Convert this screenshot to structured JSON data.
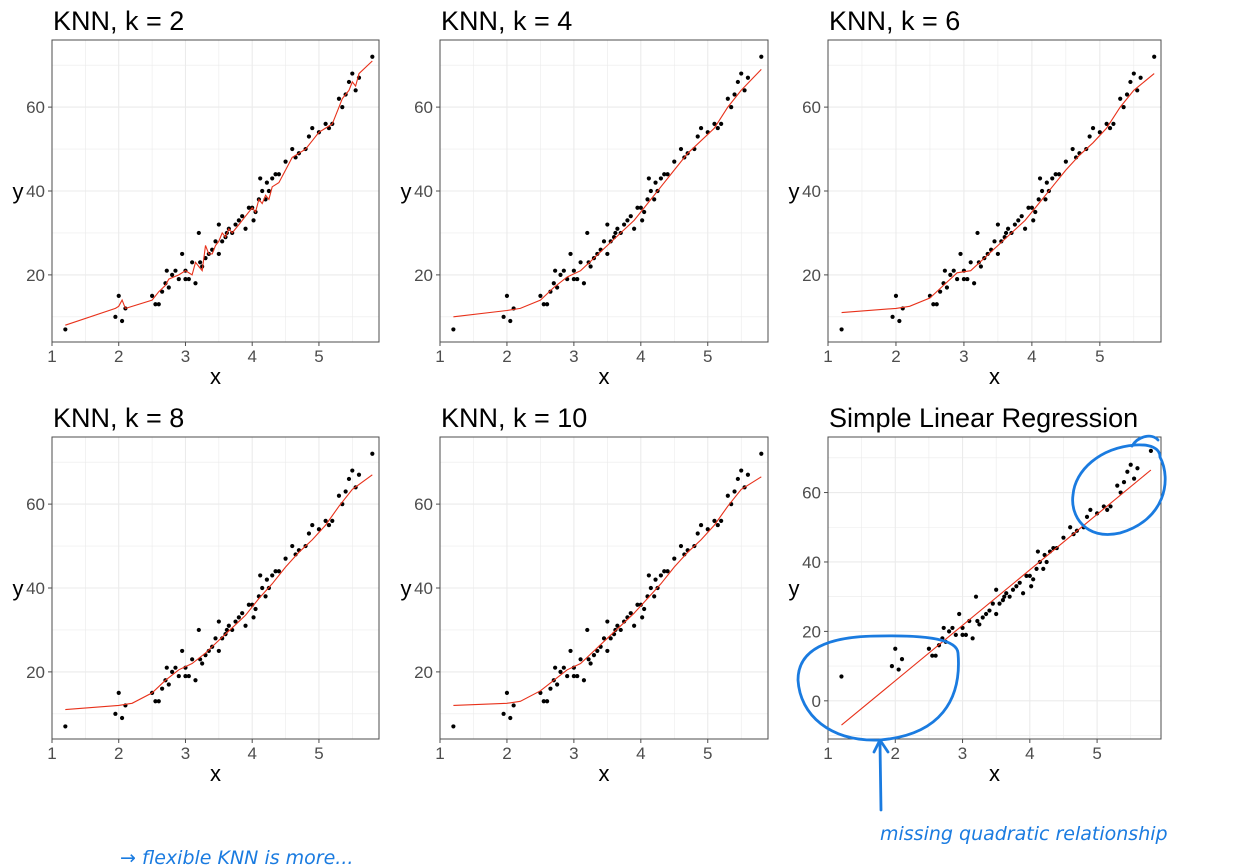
{
  "chart_data": [
    {
      "type": "scatter",
      "title": "KNN, k =  2",
      "xlabel": "x",
      "ylabel": "y",
      "xlim": [
        1,
        5.9
      ],
      "ylim": [
        4,
        76
      ],
      "grid": true,
      "x_ticks": [
        "1",
        "2",
        "3",
        "4",
        "5"
      ],
      "y_ticks": [
        "20",
        "40",
        "60"
      ],
      "fit": {
        "name": "",
        "x": [
          1.2,
          1.95,
          2.0,
          2.05,
          2.1,
          2.5,
          2.6,
          2.7,
          2.75,
          2.9,
          3.0,
          3.1,
          3.15,
          3.2,
          3.25,
          3.3,
          3.35,
          3.4,
          3.45,
          3.5,
          3.55,
          3.6,
          3.65,
          3.7,
          3.8,
          3.9,
          4.0,
          4.05,
          4.1,
          4.15,
          4.2,
          4.25,
          4.3,
          4.4,
          4.5,
          4.6,
          4.7,
          4.8,
          4.9,
          5.0,
          5.1,
          5.2,
          5.3,
          5.35,
          5.4,
          5.45,
          5.5,
          5.55,
          5.6,
          5.8
        ],
        "y": [
          8,
          12,
          12.5,
          14,
          12,
          14,
          16,
          17.5,
          19,
          20,
          21,
          20,
          23,
          22,
          21,
          27,
          25,
          25,
          27,
          28,
          30,
          29,
          31,
          30,
          32,
          34,
          36,
          35,
          38,
          37,
          39,
          38,
          41,
          42,
          45,
          48,
          49,
          50,
          52,
          54,
          55,
          56,
          60,
          62,
          63,
          64,
          66,
          65,
          68,
          71
        ]
      }
    },
    {
      "type": "scatter",
      "title": "KNN, k =  4",
      "xlabel": "x",
      "ylabel": "y",
      "xlim": [
        1,
        5.9
      ],
      "ylim": [
        4,
        76
      ],
      "grid": true,
      "x_ticks": [
        "1",
        "2",
        "3",
        "4",
        "5"
      ],
      "y_ticks": [
        "20",
        "40",
        "60"
      ],
      "fit": {
        "name": "",
        "x": [
          1.2,
          2.0,
          2.2,
          2.5,
          2.7,
          2.9,
          3.1,
          3.3,
          3.5,
          3.7,
          3.9,
          4.1,
          4.3,
          4.5,
          4.7,
          4.9,
          5.1,
          5.3,
          5.5,
          5.8
        ],
        "y": [
          10,
          11.5,
          12,
          14,
          17,
          19.5,
          21,
          24,
          27,
          30,
          33,
          37,
          41,
          45,
          49,
          52,
          55,
          60,
          64,
          69
        ]
      }
    },
    {
      "type": "scatter",
      "title": "KNN, k =  6",
      "xlabel": "x",
      "ylabel": "y",
      "xlim": [
        1,
        5.9
      ],
      "ylim": [
        4,
        76
      ],
      "grid": true,
      "x_ticks": [
        "1",
        "2",
        "3",
        "4",
        "5"
      ],
      "y_ticks": [
        "20",
        "40",
        "60"
      ],
      "fit": {
        "name": "",
        "x": [
          1.2,
          2.0,
          2.2,
          2.5,
          2.7,
          2.9,
          3.1,
          3.3,
          3.5,
          3.7,
          3.9,
          4.1,
          4.3,
          4.5,
          4.7,
          4.9,
          5.1,
          5.3,
          5.5,
          5.8
        ],
        "y": [
          11,
          12,
          12.5,
          14.5,
          17.5,
          20.5,
          21,
          24,
          27,
          30,
          33,
          37,
          41,
          45,
          48.5,
          51.5,
          55,
          60,
          64,
          68
        ]
      }
    },
    {
      "type": "scatter",
      "title": "KNN, k =  8",
      "xlabel": "x",
      "ylabel": "y",
      "xlim": [
        1,
        5.9
      ],
      "ylim": [
        4,
        76
      ],
      "grid": true,
      "x_ticks": [
        "1",
        "2",
        "3",
        "4",
        "5"
      ],
      "y_ticks": [
        "20",
        "40",
        "60"
      ],
      "fit": {
        "name": "",
        "x": [
          1.2,
          2.0,
          2.2,
          2.5,
          2.7,
          2.9,
          3.1,
          3.3,
          3.5,
          3.7,
          3.9,
          4.1,
          4.3,
          4.5,
          4.7,
          4.9,
          5.1,
          5.3,
          5.5,
          5.8
        ],
        "y": [
          11,
          12,
          12.5,
          15,
          18,
          20.5,
          22,
          24.5,
          27.5,
          30.5,
          33.5,
          37.5,
          41,
          45,
          48.5,
          51.5,
          55,
          59.5,
          63.5,
          67
        ]
      }
    },
    {
      "type": "scatter",
      "title": "KNN, k =  10",
      "xlabel": "x",
      "ylabel": "y",
      "xlim": [
        1,
        5.9
      ],
      "ylim": [
        4,
        76
      ],
      "grid": true,
      "x_ticks": [
        "1",
        "2",
        "3",
        "4",
        "5"
      ],
      "y_ticks": [
        "20",
        "40",
        "60"
      ],
      "fit": {
        "name": "",
        "x": [
          1.2,
          2.0,
          2.2,
          2.5,
          2.7,
          2.9,
          3.1,
          3.3,
          3.5,
          3.7,
          3.9,
          4.1,
          4.3,
          4.5,
          4.7,
          4.9,
          5.1,
          5.3,
          5.5,
          5.8
        ],
        "y": [
          12,
          12.5,
          13,
          15.5,
          18,
          20.5,
          22,
          25,
          28,
          31,
          34,
          37.5,
          41,
          45,
          48.5,
          51.5,
          55,
          59.5,
          63.5,
          66.5
        ]
      }
    },
    {
      "type": "scatter",
      "title": "Simple Linear Regression",
      "xlabel": "x",
      "ylabel": "y",
      "xlim": [
        1,
        5.95
      ],
      "ylim": [
        -11,
        76
      ],
      "grid": true,
      "x_ticks": [
        "1",
        "2",
        "3",
        "4",
        "5"
      ],
      "y_ticks": [
        "0",
        "20",
        "40",
        "60"
      ],
      "fit": {
        "name": "",
        "x": [
          1.2,
          5.8
        ],
        "y": [
          -7,
          66.5
        ]
      }
    }
  ],
  "shared_points": {
    "x": [
      1.2,
      1.95,
      2.0,
      2.05,
      2.1,
      2.5,
      2.55,
      2.6,
      2.65,
      2.7,
      2.72,
      2.75,
      2.8,
      2.85,
      2.9,
      2.95,
      3.0,
      3.0,
      3.05,
      3.1,
      3.15,
      3.2,
      3.22,
      3.25,
      3.3,
      3.35,
      3.4,
      3.45,
      3.5,
      3.5,
      3.55,
      3.6,
      3.62,
      3.65,
      3.7,
      3.75,
      3.8,
      3.85,
      3.9,
      3.95,
      4.0,
      4.02,
      4.05,
      4.1,
      4.12,
      4.15,
      4.2,
      4.22,
      4.25,
      4.3,
      4.35,
      4.4,
      4.5,
      4.6,
      4.65,
      4.7,
      4.8,
      4.85,
      4.9,
      5.0,
      5.1,
      5.15,
      5.2,
      5.3,
      5.35,
      5.4,
      5.45,
      5.5,
      5.55,
      5.6,
      5.8
    ],
    "y": [
      7,
      10,
      15,
      9,
      12,
      15,
      13,
      13,
      16,
      18,
      21,
      17,
      20,
      21,
      19,
      25,
      21,
      19,
      19,
      23,
      18,
      30,
      23,
      22,
      24,
      25,
      26,
      28,
      25,
      32,
      28,
      29,
      30,
      31,
      30,
      32,
      33,
      34,
      31,
      36,
      36,
      33,
      35,
      38,
      43,
      40,
      38,
      42,
      40,
      43,
      44,
      44,
      47,
      50,
      48,
      49,
      50,
      53,
      55,
      54,
      56,
      55,
      56,
      62,
      60,
      63,
      66,
      68,
      64,
      67,
      72
    ]
  },
  "annotations": {
    "bottom_right_note": "missing quadratic relationship",
    "bottom_left_fragment": "→ flexible KNN is more..."
  },
  "colors": {
    "points": "#000000",
    "fit_line": "#e8311a",
    "grid": "#ebebeb",
    "frame": "#4d4d4d",
    "annotation": "#1a7be0"
  }
}
